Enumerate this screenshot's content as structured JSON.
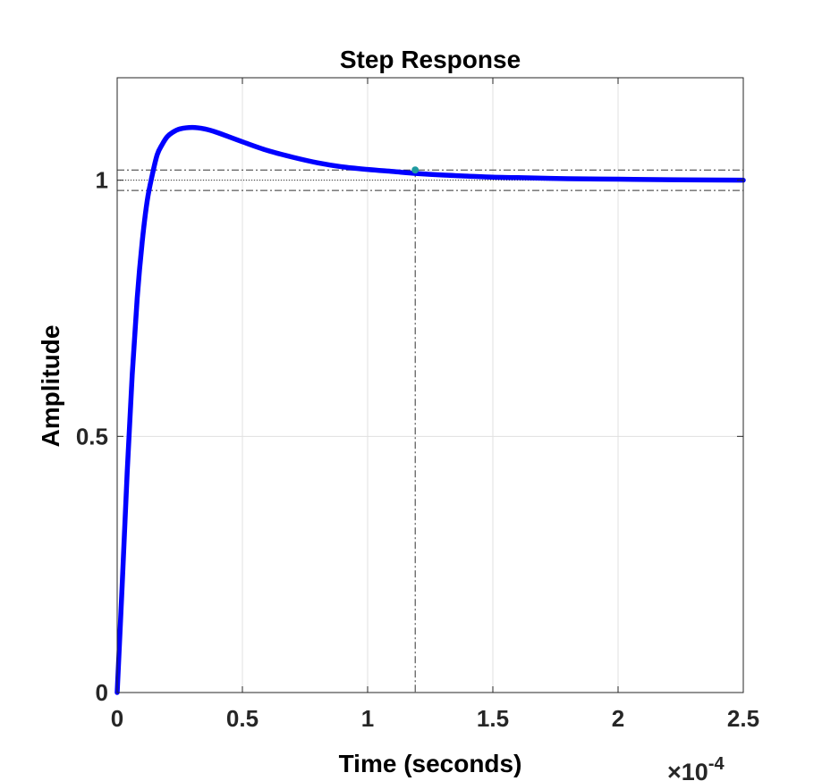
{
  "chart_data": {
    "type": "line",
    "title": "Step Response",
    "xlabel": "Time (seconds)",
    "ylabel": "Amplitude",
    "x_exponent_label": "×10",
    "x_exponent_power": "-4",
    "xlim": [
      0,
      2.5
    ],
    "ylim": [
      0,
      1.2
    ],
    "x_scale_factor": 0.0001,
    "xticks": [
      0,
      0.5,
      1,
      1.5,
      2,
      2.5
    ],
    "xtick_labels": [
      "0",
      "0.5",
      "1",
      "1.5",
      "2",
      "2.5"
    ],
    "yticks": [
      0,
      0.5,
      1
    ],
    "ytick_labels": [
      "0",
      "0.5",
      "1"
    ],
    "grid": true,
    "series": [
      {
        "color": "#0000ff",
        "x": [
          0,
          0.02,
          0.04,
          0.06,
          0.08,
          0.1,
          0.12,
          0.14,
          0.16,
          0.18,
          0.2,
          0.22,
          0.25,
          0.3,
          0.35,
          0.4,
          0.5,
          0.6,
          0.7,
          0.8,
          0.9,
          1.0,
          1.1,
          1.2,
          1.3,
          1.4,
          1.5,
          1.6,
          1.8,
          2.0,
          2.2,
          2.5
        ],
        "y": [
          0,
          0.21,
          0.43,
          0.62,
          0.77,
          0.88,
          0.96,
          1.01,
          1.05,
          1.07,
          1.085,
          1.093,
          1.1,
          1.103,
          1.1,
          1.093,
          1.075,
          1.058,
          1.045,
          1.034,
          1.026,
          1.021,
          1.017,
          1.013,
          1.01,
          1.008,
          1.006,
          1.005,
          1.003,
          1.002,
          1.001,
          1.0
        ]
      }
    ],
    "steady_state": 1.0,
    "settling_band": [
      0.98,
      1.02
    ],
    "settling_time_marker": {
      "x": 1.19,
      "y": 1.02,
      "color": "#1f9aa0"
    }
  }
}
